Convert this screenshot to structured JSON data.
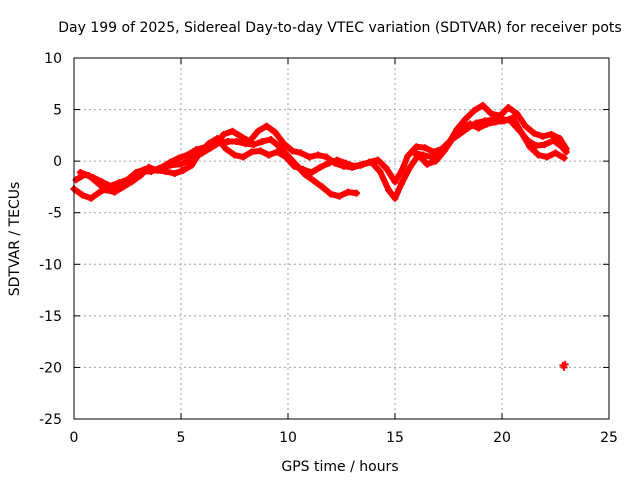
{
  "chart_data": {
    "type": "scatter",
    "title": "Day 199 of 2025, Sidereal Day-to-day VTEC variation (SDTVAR) for receiver pots",
    "xlabel": "GPS time / hours",
    "ylabel": "SDTVAR / TECUs",
    "xlim": [
      0,
      25
    ],
    "ylim": [
      -25,
      10
    ],
    "grid": true,
    "x_ticks": [
      0,
      5,
      10,
      15,
      20,
      25
    ],
    "y_ticks": [
      10,
      5,
      0,
      -5,
      -10,
      -15,
      -20,
      -25
    ],
    "series": [
      {
        "name": "trace-a",
        "color": "#ff0000",
        "points": [
          [
            0.0,
            -2.7
          ],
          [
            0.4,
            -3.3
          ],
          [
            0.8,
            -3.6
          ],
          [
            1.2,
            -3.0
          ],
          [
            1.6,
            -2.6
          ],
          [
            2.0,
            -2.8
          ],
          [
            2.4,
            -2.2
          ],
          [
            2.8,
            -1.7
          ],
          [
            3.2,
            -1.0
          ],
          [
            3.6,
            -1.0
          ],
          [
            4.0,
            -0.7
          ],
          [
            4.5,
            -0.4
          ],
          [
            5.0,
            -0.3
          ],
          [
            5.5,
            0.2
          ],
          [
            6.0,
            0.8
          ],
          [
            6.4,
            1.3
          ],
          [
            6.8,
            1.8
          ],
          [
            7.2,
            1.9
          ],
          [
            7.6,
            1.9
          ],
          [
            8.0,
            1.7
          ],
          [
            8.4,
            1.6
          ],
          [
            8.8,
            1.9
          ],
          [
            9.2,
            2.1
          ],
          [
            9.6,
            1.4
          ],
          [
            10.0,
            0.5
          ],
          [
            10.4,
            -0.4
          ],
          [
            10.8,
            -1.3
          ],
          [
            11.2,
            -1.9
          ],
          [
            11.6,
            -2.5
          ],
          [
            12.0,
            -3.2
          ],
          [
            12.4,
            -3.4
          ],
          [
            12.8,
            -3.0
          ],
          [
            13.2,
            -3.1
          ]
        ]
      },
      {
        "name": "trace-b",
        "color": "#ff0000",
        "points": [
          [
            0.1,
            -1.8
          ],
          [
            0.5,
            -1.3
          ],
          [
            0.9,
            -1.6
          ],
          [
            1.3,
            -2.0
          ],
          [
            1.7,
            -2.4
          ],
          [
            2.1,
            -2.1
          ],
          [
            2.5,
            -1.8
          ],
          [
            2.9,
            -1.1
          ],
          [
            3.3,
            -0.8
          ],
          [
            3.7,
            -0.9
          ],
          [
            4.1,
            -0.6
          ],
          [
            4.5,
            -0.1
          ],
          [
            4.9,
            0.3
          ],
          [
            5.3,
            0.6
          ],
          [
            5.7,
            1.1
          ],
          [
            6.2,
            1.4
          ],
          [
            6.6,
            1.6
          ],
          [
            7.0,
            2.6
          ],
          [
            7.4,
            2.9
          ],
          [
            7.8,
            2.4
          ],
          [
            8.2,
            1.9
          ],
          [
            8.6,
            2.9
          ],
          [
            9.0,
            3.4
          ],
          [
            9.4,
            2.8
          ],
          [
            9.8,
            1.7
          ],
          [
            10.2,
            1.0
          ],
          [
            10.6,
            0.8
          ],
          [
            11.0,
            0.4
          ],
          [
            11.4,
            0.6
          ],
          [
            11.8,
            0.4
          ],
          [
            12.2,
            -0.2
          ],
          [
            12.6,
            -0.5
          ],
          [
            13.0,
            -0.6
          ],
          [
            13.4,
            -0.4
          ],
          [
            13.8,
            -0.1
          ],
          [
            14.2,
            0.1
          ],
          [
            14.6,
            -0.7
          ],
          [
            15.0,
            -2.0
          ],
          [
            15.3,
            -1.0
          ],
          [
            15.6,
            0.5
          ],
          [
            16.0,
            1.4
          ],
          [
            16.4,
            1.3
          ],
          [
            16.8,
            0.9
          ],
          [
            17.2,
            1.2
          ],
          [
            17.6,
            2.0
          ],
          [
            18.0,
            2.6
          ],
          [
            18.4,
            3.2
          ],
          [
            18.8,
            3.7
          ],
          [
            19.2,
            3.9
          ],
          [
            19.6,
            4.0
          ],
          [
            20.0,
            4.1
          ],
          [
            20.4,
            3.9
          ],
          [
            20.8,
            3.0
          ],
          [
            21.2,
            2.0
          ],
          [
            21.6,
            1.5
          ],
          [
            22.0,
            1.6
          ],
          [
            22.4,
            2.0
          ],
          [
            22.8,
            1.4
          ],
          [
            23.0,
            0.9
          ]
        ]
      },
      {
        "name": "trace-c",
        "color": "#ff0000",
        "points": [
          [
            0.3,
            -1.1
          ],
          [
            0.7,
            -1.4
          ],
          [
            1.1,
            -2.1
          ],
          [
            1.5,
            -2.8
          ],
          [
            1.9,
            -3.0
          ],
          [
            2.3,
            -2.5
          ],
          [
            2.7,
            -2.0
          ],
          [
            3.1,
            -1.4
          ],
          [
            3.5,
            -0.6
          ],
          [
            3.9,
            -0.9
          ],
          [
            4.3,
            -1.0
          ],
          [
            4.7,
            -1.2
          ],
          [
            5.1,
            -0.9
          ],
          [
            5.5,
            -0.4
          ],
          [
            5.9,
            0.9
          ],
          [
            6.3,
            1.7
          ],
          [
            6.7,
            2.2
          ],
          [
            7.1,
            1.2
          ],
          [
            7.5,
            0.6
          ],
          [
            7.9,
            0.4
          ],
          [
            8.3,
            0.9
          ],
          [
            8.7,
            1.0
          ],
          [
            9.1,
            0.6
          ],
          [
            9.5,
            0.9
          ],
          [
            9.9,
            0.4
          ],
          [
            10.3,
            -0.5
          ],
          [
            10.7,
            -0.8
          ],
          [
            11.1,
            -1.1
          ],
          [
            11.5,
            -0.6
          ],
          [
            11.9,
            -0.2
          ],
          [
            12.3,
            0.1
          ],
          [
            12.7,
            -0.2
          ],
          [
            13.1,
            -0.5
          ],
          [
            13.5,
            -0.3
          ],
          [
            13.9,
            -0.1
          ],
          [
            14.3,
            -1.0
          ],
          [
            14.7,
            -2.8
          ],
          [
            15.0,
            -3.6
          ],
          [
            15.3,
            -2.2
          ],
          [
            15.7,
            -0.6
          ],
          [
            16.1,
            0.6
          ],
          [
            16.5,
            -0.3
          ],
          [
            16.9,
            0.0
          ],
          [
            17.3,
            1.0
          ],
          [
            17.7,
            2.2
          ],
          [
            18.1,
            3.1
          ],
          [
            18.5,
            3.6
          ],
          [
            18.9,
            3.2
          ],
          [
            19.3,
            3.6
          ],
          [
            19.7,
            3.8
          ],
          [
            20.1,
            3.9
          ],
          [
            20.5,
            4.2
          ],
          [
            20.9,
            2.8
          ],
          [
            21.3,
            1.4
          ],
          [
            21.7,
            0.6
          ],
          [
            22.1,
            0.4
          ],
          [
            22.5,
            0.8
          ],
          [
            22.9,
            0.3
          ]
        ]
      },
      {
        "name": "trace-d",
        "color": "#ff0000",
        "points": [
          [
            15.9,
            0.8
          ],
          [
            16.3,
            0.6
          ],
          [
            16.7,
            0.4
          ],
          [
            17.1,
            0.5
          ],
          [
            17.5,
            1.7
          ],
          [
            17.9,
            3.1
          ],
          [
            18.3,
            4.1
          ],
          [
            18.7,
            4.9
          ],
          [
            19.1,
            5.4
          ],
          [
            19.5,
            4.6
          ],
          [
            19.9,
            4.4
          ],
          [
            20.3,
            5.2
          ],
          [
            20.7,
            4.6
          ],
          [
            21.1,
            3.4
          ],
          [
            21.5,
            2.7
          ],
          [
            21.9,
            2.4
          ],
          [
            22.3,
            2.6
          ],
          [
            22.7,
            2.2
          ],
          [
            23.0,
            1.2
          ]
        ]
      },
      {
        "name": "outlier",
        "color": "#ff0000",
        "points": [
          [
            22.85,
            -19.8
          ],
          [
            22.9,
            -20.0
          ],
          [
            22.95,
            -19.7
          ]
        ]
      }
    ]
  }
}
